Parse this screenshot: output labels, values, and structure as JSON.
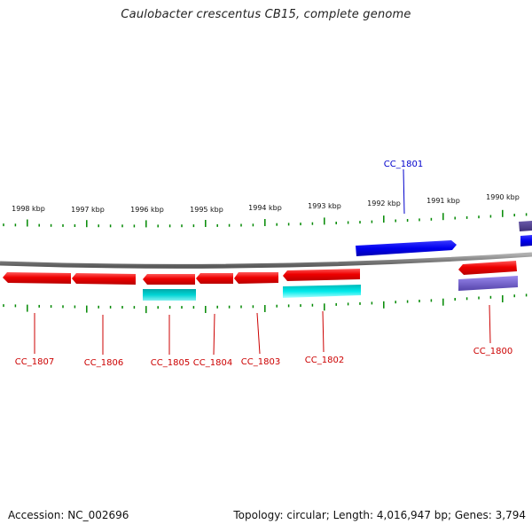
{
  "title": "Caulobacter crescentus CB15, complete genome",
  "footer": {
    "accession": "Accession: NC_002696",
    "summary": "Topology: circular; Length: 4,016,947 bp; Genes: 3,794"
  },
  "colors": {
    "forward_cds": "#0000ee",
    "reverse_cds": "#ee0000",
    "reverse_rna": "#00cccc",
    "reverse_misc": "#7766cc",
    "forward_misc": "#554499",
    "ticks": "#008800",
    "backbone": "#888888"
  },
  "kbp_labels": [
    "1998 kbp",
    "1997 kbp",
    "1996 kbp",
    "1995 kbp",
    "1994 kbp",
    "1993 kbp",
    "1992 kbp",
    "1991 kbp",
    "1990 kbp"
  ],
  "genes": [
    {
      "label": "CC_1801",
      "strand": "forward",
      "color": "blue"
    },
    {
      "label": "CC_1807",
      "strand": "reverse",
      "color": "red"
    },
    {
      "label": "CC_1806",
      "strand": "reverse",
      "color": "red"
    },
    {
      "label": "CC_1805",
      "strand": "reverse",
      "color": "red"
    },
    {
      "label": "CC_1804",
      "strand": "reverse",
      "color": "red"
    },
    {
      "label": "CC_1803",
      "strand": "reverse",
      "color": "red"
    },
    {
      "label": "CC_1802",
      "strand": "reverse",
      "color": "red"
    },
    {
      "label": "CC_1800",
      "strand": "reverse",
      "color": "red"
    }
  ]
}
